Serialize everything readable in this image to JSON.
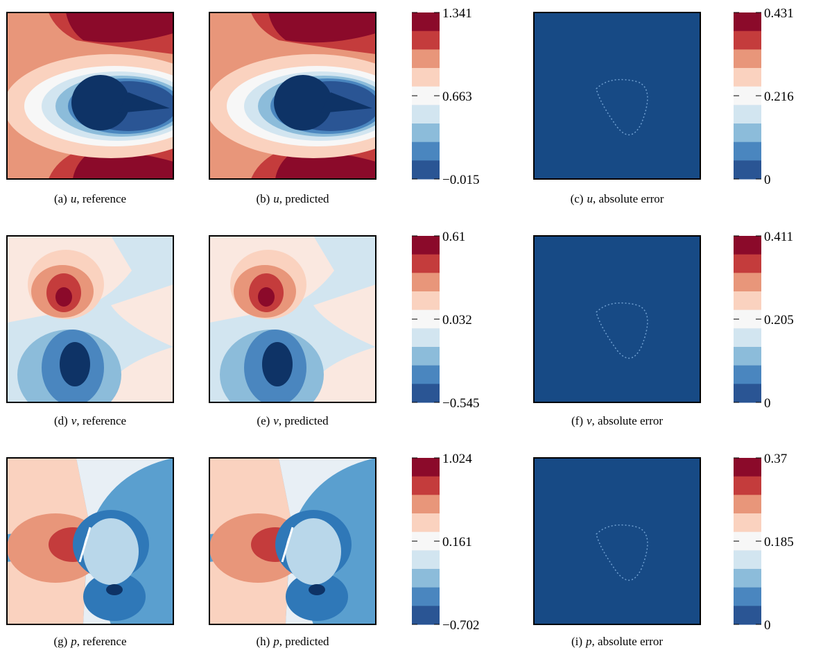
{
  "panels": [
    {
      "caption": {
        "tag": "(a)",
        "var": "u",
        "text": ", reference"
      }
    },
    {
      "caption": {
        "tag": "(b)",
        "var": "u",
        "text": ", predicted"
      }
    },
    {
      "caption": {
        "tag": "(c)",
        "var": "u",
        "text": ", absolute error"
      }
    },
    {
      "caption": {
        "tag": "(d)",
        "var": "v",
        "text": ", reference"
      }
    },
    {
      "caption": {
        "tag": "(e)",
        "var": "v",
        "text": ", predicted"
      }
    },
    {
      "caption": {
        "tag": "(f)",
        "var": "v",
        "text": ", absolute error"
      }
    },
    {
      "caption": {
        "tag": "(g)",
        "var": "p",
        "text": ", reference"
      }
    },
    {
      "caption": {
        "tag": "(h)",
        "var": "p",
        "text": ", predicted"
      }
    },
    {
      "caption": {
        "tag": "(i)",
        "var": "p",
        "text": ", absolute error"
      }
    }
  ],
  "colorbars": [
    {
      "ticks": [
        "1.341",
        "0.663",
        "−0.015"
      ]
    },
    {
      "ticks": [
        "0.431",
        "0.216",
        "0"
      ]
    },
    {
      "ticks": [
        "0.61",
        "0.032",
        "−0.545"
      ]
    },
    {
      "ticks": [
        "0.411",
        "0.205",
        "0"
      ]
    },
    {
      "ticks": [
        "1.024",
        "0.161",
        "−0.702"
      ]
    },
    {
      "ticks": [
        "0.37",
        "0.185",
        "0"
      ]
    }
  ],
  "colors": [
    "#8b0a2a",
    "#c43c3c",
    "#e8967a",
    "#fad2bf",
    "#f7f7f7",
    "#d2e5f0",
    "#8cbcda",
    "#4a86bf",
    "#2a5594"
  ]
}
